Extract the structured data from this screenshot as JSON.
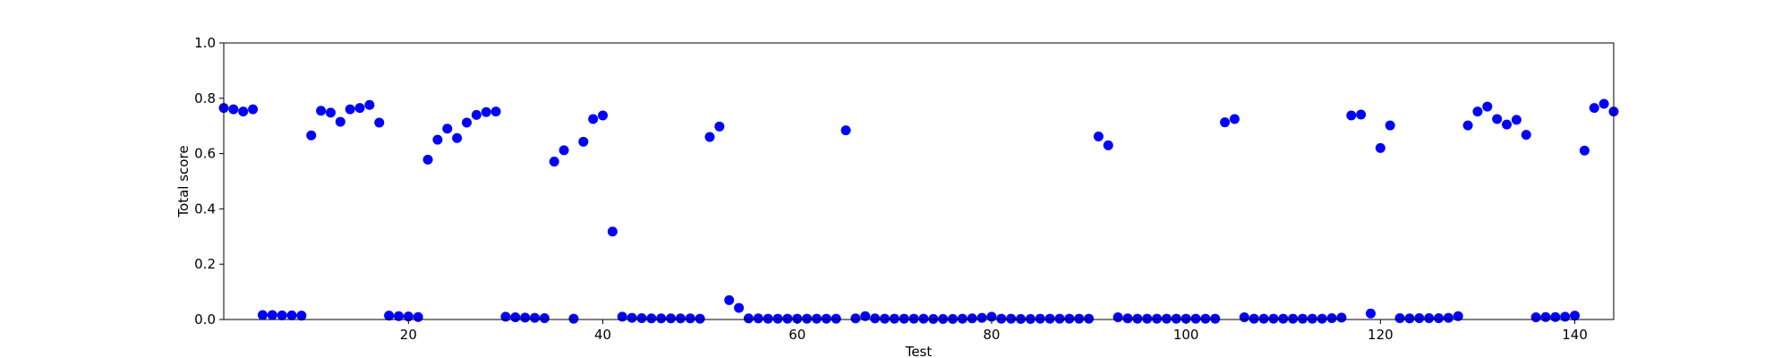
{
  "chart_data": {
    "type": "scatter",
    "title": "",
    "xlabel": "Test",
    "ylabel": "Total score",
    "xlim": [
      1,
      144
    ],
    "ylim": [
      0.0,
      1.0
    ],
    "xticks": [
      20,
      40,
      60,
      80,
      100,
      120,
      140
    ],
    "yticks": [
      "0.0",
      "0.2",
      "0.4",
      "0.6",
      "0.8",
      "1.0"
    ],
    "grid": false,
    "marker_color": "#0000ff",
    "points": [
      [
        1,
        0.765
      ],
      [
        2,
        0.76
      ],
      [
        3,
        0.752
      ],
      [
        4,
        0.76
      ],
      [
        5,
        0.016
      ],
      [
        6,
        0.016
      ],
      [
        7,
        0.015
      ],
      [
        8,
        0.015
      ],
      [
        9,
        0.014
      ],
      [
        10,
        0.666
      ],
      [
        11,
        0.755
      ],
      [
        12,
        0.748
      ],
      [
        13,
        0.715
      ],
      [
        14,
        0.76
      ],
      [
        15,
        0.765
      ],
      [
        16,
        0.776
      ],
      [
        17,
        0.712
      ],
      [
        18,
        0.014
      ],
      [
        19,
        0.012
      ],
      [
        20,
        0.011
      ],
      [
        21,
        0.009
      ],
      [
        22,
        0.578
      ],
      [
        23,
        0.65
      ],
      [
        24,
        0.69
      ],
      [
        25,
        0.656
      ],
      [
        26,
        0.712
      ],
      [
        27,
        0.74
      ],
      [
        28,
        0.75
      ],
      [
        29,
        0.752
      ],
      [
        30,
        0.01
      ],
      [
        31,
        0.008
      ],
      [
        32,
        0.007
      ],
      [
        33,
        0.006
      ],
      [
        34,
        0.005
      ],
      [
        35,
        0.571
      ],
      [
        36,
        0.612
      ],
      [
        37,
        0.003
      ],
      [
        38,
        0.643
      ],
      [
        39,
        0.725
      ],
      [
        40,
        0.738
      ],
      [
        41,
        0.318
      ],
      [
        42,
        0.01
      ],
      [
        43,
        0.006
      ],
      [
        44,
        0.005
      ],
      [
        45,
        0.004
      ],
      [
        46,
        0.004
      ],
      [
        47,
        0.004
      ],
      [
        48,
        0.004
      ],
      [
        49,
        0.004
      ],
      [
        50,
        0.003
      ],
      [
        51,
        0.66
      ],
      [
        52,
        0.698
      ],
      [
        53,
        0.07
      ],
      [
        54,
        0.042
      ],
      [
        55,
        0.004
      ],
      [
        56,
        0.004
      ],
      [
        57,
        0.003
      ],
      [
        58,
        0.003
      ],
      [
        59,
        0.003
      ],
      [
        60,
        0.003
      ],
      [
        61,
        0.003
      ],
      [
        62,
        0.003
      ],
      [
        63,
        0.003
      ],
      [
        64,
        0.003
      ],
      [
        65,
        0.684
      ],
      [
        66,
        0.004
      ],
      [
        67,
        0.012
      ],
      [
        68,
        0.004
      ],
      [
        69,
        0.003
      ],
      [
        70,
        0.003
      ],
      [
        71,
        0.003
      ],
      [
        72,
        0.003
      ],
      [
        73,
        0.003
      ],
      [
        74,
        0.002
      ],
      [
        75,
        0.002
      ],
      [
        76,
        0.002
      ],
      [
        77,
        0.003
      ],
      [
        78,
        0.004
      ],
      [
        79,
        0.006
      ],
      [
        80,
        0.01
      ],
      [
        81,
        0.003
      ],
      [
        82,
        0.003
      ],
      [
        83,
        0.002
      ],
      [
        84,
        0.002
      ],
      [
        85,
        0.003
      ],
      [
        86,
        0.003
      ],
      [
        87,
        0.003
      ],
      [
        88,
        0.003
      ],
      [
        89,
        0.003
      ],
      [
        90,
        0.003
      ],
      [
        91,
        0.662
      ],
      [
        92,
        0.63
      ],
      [
        93,
        0.008
      ],
      [
        94,
        0.004
      ],
      [
        95,
        0.003
      ],
      [
        96,
        0.003
      ],
      [
        97,
        0.003
      ],
      [
        98,
        0.003
      ],
      [
        99,
        0.003
      ],
      [
        100,
        0.003
      ],
      [
        101,
        0.003
      ],
      [
        102,
        0.003
      ],
      [
        103,
        0.003
      ],
      [
        104,
        0.713
      ],
      [
        105,
        0.725
      ],
      [
        106,
        0.008
      ],
      [
        107,
        0.003
      ],
      [
        108,
        0.003
      ],
      [
        109,
        0.003
      ],
      [
        110,
        0.003
      ],
      [
        111,
        0.003
      ],
      [
        112,
        0.003
      ],
      [
        113,
        0.003
      ],
      [
        114,
        0.003
      ],
      [
        115,
        0.005
      ],
      [
        116,
        0.007
      ],
      [
        117,
        0.738
      ],
      [
        118,
        0.741
      ],
      [
        119,
        0.022
      ],
      [
        120,
        0.62
      ],
      [
        121,
        0.702
      ],
      [
        122,
        0.005
      ],
      [
        123,
        0.004
      ],
      [
        124,
        0.005
      ],
      [
        125,
        0.005
      ],
      [
        126,
        0.005
      ],
      [
        127,
        0.006
      ],
      [
        128,
        0.012
      ],
      [
        129,
        0.702
      ],
      [
        130,
        0.752
      ],
      [
        131,
        0.77
      ],
      [
        132,
        0.725
      ],
      [
        133,
        0.705
      ],
      [
        134,
        0.722
      ],
      [
        135,
        0.668
      ],
      [
        136,
        0.008
      ],
      [
        137,
        0.009
      ],
      [
        138,
        0.009
      ],
      [
        139,
        0.01
      ],
      [
        140,
        0.014
      ],
      [
        141,
        0.611
      ],
      [
        142,
        0.765
      ],
      [
        143,
        0.78
      ],
      [
        144,
        0.752
      ]
    ]
  }
}
